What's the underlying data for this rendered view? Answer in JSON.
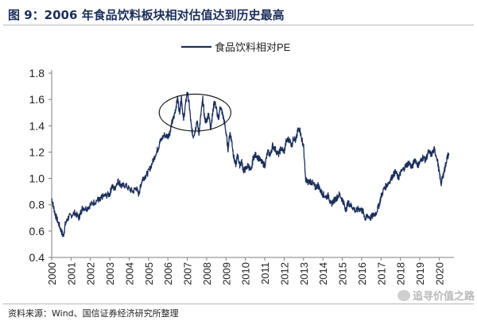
{
  "figure": {
    "title": "图 9：2006 年食品饮料板块相对估值达到历史最高",
    "source": "资料来源：Wind、国信证券经济研究所整理",
    "watermark": "追寻价值之路"
  },
  "chart_data": {
    "type": "line",
    "title": "",
    "xlabel": "",
    "ylabel": "",
    "legend": "top-center",
    "grid": false,
    "ylim": [
      0.4,
      1.8
    ],
    "yticks": [
      "0.4",
      "0.6",
      "0.8",
      "1.0",
      "1.2",
      "1.4",
      "1.6",
      "1.8"
    ],
    "xlim": [
      2000,
      2020.6
    ],
    "xticks": [
      "2000",
      "2001",
      "2002",
      "2003",
      "2004",
      "2005",
      "2006",
      "2007",
      "2008",
      "2009",
      "2010",
      "2011",
      "2012",
      "2013",
      "2014",
      "2015",
      "2016",
      "2017",
      "2018",
      "2019",
      "2020"
    ],
    "line_color": "#1c2f5c",
    "series": [
      {
        "name": "食品饮料相对PE",
        "x": [
          2000.0,
          2000.1,
          2000.2,
          2000.35,
          2000.5,
          2000.6,
          2000.7,
          2000.85,
          2001.0,
          2001.2,
          2001.4,
          2001.5,
          2001.6,
          2001.8,
          2002.0,
          2002.2,
          2002.4,
          2002.5,
          2002.6,
          2002.8,
          2003.0,
          2003.1,
          2003.25,
          2003.4,
          2003.5,
          2003.6,
          2003.8,
          2004.0,
          2004.2,
          2004.35,
          2004.5,
          2004.6,
          2004.7,
          2004.85,
          2005.0,
          2005.2,
          2005.4,
          2005.5,
          2005.6,
          2005.8,
          2006.0,
          2006.1,
          2006.2,
          2006.3,
          2006.4,
          2006.5,
          2006.6,
          2006.7,
          2006.8,
          2006.9,
          2007.0,
          2007.1,
          2007.2,
          2007.3,
          2007.4,
          2007.5,
          2007.6,
          2007.7,
          2007.8,
          2007.9,
          2008.0,
          2008.1,
          2008.2,
          2008.3,
          2008.4,
          2008.5,
          2008.6,
          2008.7,
          2008.8,
          2008.9,
          2009.0,
          2009.1,
          2009.2,
          2009.3,
          2009.4,
          2009.5,
          2009.6,
          2009.7,
          2009.8,
          2009.9,
          2010.0,
          2010.15,
          2010.3,
          2010.4,
          2010.55,
          2010.7,
          2010.85,
          2011.0,
          2011.15,
          2011.3,
          2011.4,
          2011.55,
          2011.7,
          2011.85,
          2012.0,
          2012.1,
          2012.25,
          2012.4,
          2012.5,
          2012.6,
          2012.7,
          2012.8,
          2012.9,
          2013.0,
          2013.1,
          2013.2,
          2013.35,
          2013.5,
          2013.6,
          2013.75,
          2013.9,
          2014.0,
          2014.15,
          2014.3,
          2014.4,
          2014.55,
          2014.7,
          2014.85,
          2015.0,
          2015.1,
          2015.2,
          2015.3,
          2015.4,
          2015.55,
          2015.7,
          2015.85,
          2016.0,
          2016.1,
          2016.2,
          2016.3,
          2016.45,
          2016.6,
          2016.75,
          2016.9,
          2017.0,
          2017.15,
          2017.3,
          2017.45,
          2017.6,
          2017.75,
          2017.9,
          2018.0,
          2018.15,
          2018.3,
          2018.45,
          2018.6,
          2018.75,
          2018.9,
          2019.0,
          2019.15,
          2019.3,
          2019.45,
          2019.6,
          2019.75,
          2019.9,
          2020.0,
          2020.1,
          2020.2,
          2020.3,
          2020.4,
          2020.5
        ],
        "values": [
          0.85,
          0.78,
          0.72,
          0.66,
          0.6,
          0.56,
          0.65,
          0.7,
          0.72,
          0.74,
          0.7,
          0.74,
          0.78,
          0.77,
          0.8,
          0.82,
          0.84,
          0.83,
          0.86,
          0.87,
          0.88,
          0.94,
          0.92,
          0.98,
          0.97,
          0.94,
          0.95,
          0.92,
          0.9,
          0.93,
          0.88,
          0.95,
          1.0,
          1.02,
          1.05,
          1.12,
          1.2,
          1.23,
          1.28,
          1.33,
          1.32,
          1.35,
          1.42,
          1.46,
          1.53,
          1.61,
          1.5,
          1.62,
          1.44,
          1.55,
          1.66,
          1.56,
          1.4,
          1.32,
          1.36,
          1.44,
          1.34,
          1.48,
          1.6,
          1.45,
          1.43,
          1.5,
          1.38,
          1.48,
          1.59,
          1.53,
          1.44,
          1.55,
          1.5,
          1.44,
          1.35,
          1.22,
          1.35,
          1.28,
          1.16,
          1.1,
          1.18,
          1.1,
          1.13,
          1.06,
          1.07,
          1.1,
          1.05,
          1.16,
          1.18,
          1.15,
          1.12,
          1.1,
          1.2,
          1.18,
          1.25,
          1.22,
          1.18,
          1.23,
          1.2,
          1.28,
          1.3,
          1.25,
          1.32,
          1.28,
          1.36,
          1.38,
          1.3,
          1.25,
          1.0,
          0.97,
          0.98,
          0.96,
          0.93,
          0.95,
          0.9,
          0.88,
          0.86,
          0.87,
          0.8,
          0.83,
          0.85,
          0.88,
          0.84,
          0.8,
          0.76,
          0.82,
          0.8,
          0.78,
          0.75,
          0.77,
          0.76,
          0.74,
          0.69,
          0.72,
          0.7,
          0.72,
          0.74,
          0.8,
          0.86,
          0.92,
          0.95,
          0.98,
          1.02,
          1.05,
          1.0,
          1.04,
          1.07,
          1.1,
          1.12,
          1.08,
          1.15,
          1.1,
          1.12,
          1.16,
          1.14,
          1.2,
          1.18,
          1.22,
          1.15,
          1.05,
          0.96,
          1.02,
          1.08,
          1.15,
          1.19
        ]
      }
    ],
    "annotation": {
      "shape": "ellipse",
      "x_center": 2007.4,
      "y_center": 1.5,
      "x_half_width": 1.85,
      "y_half_height": 0.14
    }
  }
}
